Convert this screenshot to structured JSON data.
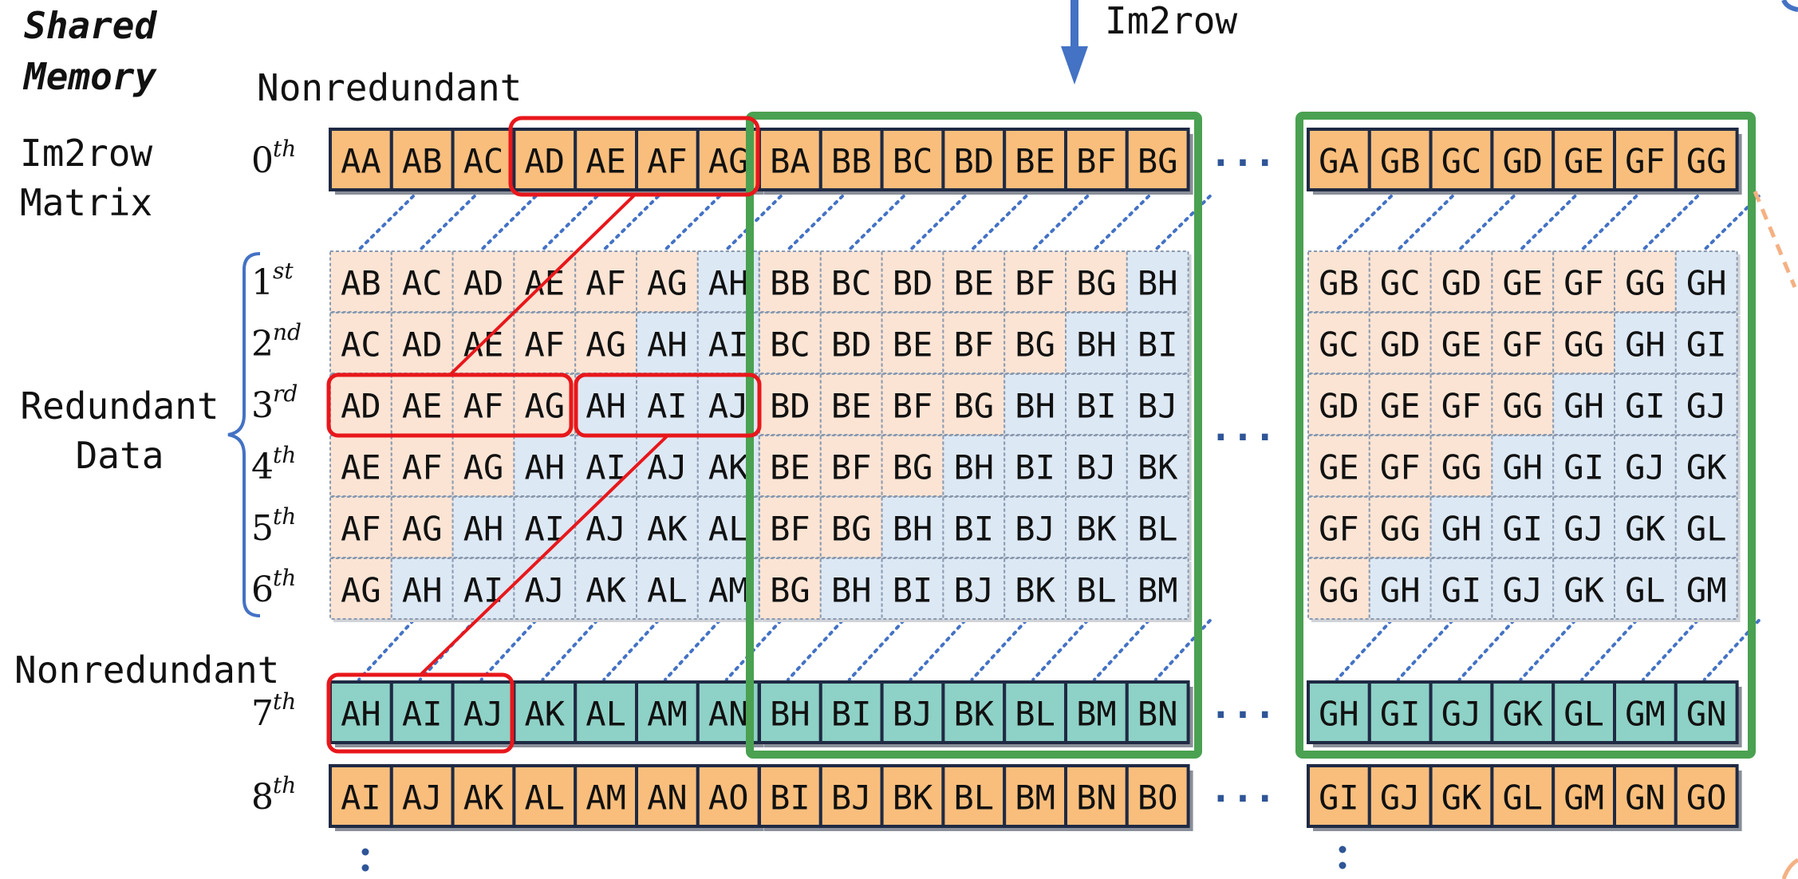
{
  "labels": {
    "shared_memory": [
      "Shared",
      "Memory"
    ],
    "im2row_matrix": [
      "Im2row",
      "Matrix"
    ],
    "redundant_data": [
      "Redundant",
      "Data"
    ],
    "nonredundant_top": "Nonredundant",
    "nonredundant_bottom": "Nonredundant",
    "im2row_arrow": "Im2row",
    "ellipsis": "..."
  },
  "colors": {
    "orange_solid": "#F9BE7C",
    "orange_light": "#FCE4D4",
    "blue_light": "#DCE8F4",
    "teal_solid": "#8ED1C6",
    "red_highlight": "#E8171B",
    "green_block": "#4AA151",
    "arrow_blue": "#4472C4",
    "brace_blue": "#4472C4",
    "dotted_blue": "#4472C4",
    "dashed_orange": "#F4B183"
  },
  "rows": [
    {
      "ord": "0",
      "sup": "th",
      "style": "solid-orange",
      "groupA": [
        "AA",
        "AB",
        "AC",
        "AD",
        "AE",
        "AF",
        "AG"
      ],
      "groupB": [
        "BA",
        "BB",
        "BC",
        "BD",
        "BE",
        "BF",
        "BG"
      ],
      "groupG": [
        "GA",
        "GB",
        "GC",
        "GD",
        "GE",
        "GF",
        "GG"
      ]
    },
    {
      "ord": "1",
      "sup": "st",
      "style": "redundant",
      "groupA": [
        "AB",
        "AC",
        "AD",
        "AE",
        "AF",
        "AG",
        "AH"
      ],
      "groupB": [
        "BB",
        "BC",
        "BD",
        "BE",
        "BF",
        "BG",
        "BH"
      ],
      "groupG": [
        "GB",
        "GC",
        "GD",
        "GE",
        "GF",
        "GG",
        "GH"
      ]
    },
    {
      "ord": "2",
      "sup": "nd",
      "style": "redundant",
      "groupA": [
        "AC",
        "AD",
        "AE",
        "AF",
        "AG",
        "AH",
        "AI"
      ],
      "groupB": [
        "BC",
        "BD",
        "BE",
        "BF",
        "BG",
        "BH",
        "BI"
      ],
      "groupG": [
        "GC",
        "GD",
        "GE",
        "GF",
        "GG",
        "GH",
        "GI"
      ]
    },
    {
      "ord": "3",
      "sup": "rd",
      "style": "redundant",
      "groupA": [
        "AD",
        "AE",
        "AF",
        "AG",
        "AH",
        "AI",
        "AJ"
      ],
      "groupB": [
        "BD",
        "BE",
        "BF",
        "BG",
        "BH",
        "BI",
        "BJ"
      ],
      "groupG": [
        "GD",
        "GE",
        "GF",
        "GG",
        "GH",
        "GI",
        "GJ"
      ]
    },
    {
      "ord": "4",
      "sup": "th",
      "style": "redundant",
      "groupA": [
        "AE",
        "AF",
        "AG",
        "AH",
        "AI",
        "AJ",
        "AK"
      ],
      "groupB": [
        "BE",
        "BF",
        "BG",
        "BH",
        "BI",
        "BJ",
        "BK"
      ],
      "groupG": [
        "GE",
        "GF",
        "GG",
        "GH",
        "GI",
        "GJ",
        "GK"
      ]
    },
    {
      "ord": "5",
      "sup": "th",
      "style": "redundant",
      "groupA": [
        "AF",
        "AG",
        "AH",
        "AI",
        "AJ",
        "AK",
        "AL"
      ],
      "groupB": [
        "BF",
        "BG",
        "BH",
        "BI",
        "BJ",
        "BK",
        "BL"
      ],
      "groupG": [
        "GF",
        "GG",
        "GH",
        "GI",
        "GJ",
        "GK",
        "GL"
      ]
    },
    {
      "ord": "6",
      "sup": "th",
      "style": "redundant",
      "groupA": [
        "AG",
        "AH",
        "AI",
        "AJ",
        "AK",
        "AL",
        "AM"
      ],
      "groupB": [
        "BG",
        "BH",
        "BI",
        "BJ",
        "BK",
        "BL",
        "BM"
      ],
      "groupG": [
        "GG",
        "GH",
        "GI",
        "GJ",
        "GK",
        "GL",
        "GM"
      ]
    },
    {
      "ord": "7",
      "sup": "th",
      "style": "solid-teal",
      "groupA": [
        "AH",
        "AI",
        "AJ",
        "AK",
        "AL",
        "AM",
        "AN"
      ],
      "groupB": [
        "BH",
        "BI",
        "BJ",
        "BK",
        "BL",
        "BM",
        "BN"
      ],
      "groupG": [
        "GH",
        "GI",
        "GJ",
        "GK",
        "GL",
        "GM",
        "GN"
      ]
    },
    {
      "ord": "8",
      "sup": "th",
      "style": "solid-orange",
      "groupA": [
        "AI",
        "AJ",
        "AK",
        "AL",
        "AM",
        "AN",
        "AO"
      ],
      "groupB": [
        "BI",
        "BJ",
        "BK",
        "BL",
        "BM",
        "BN",
        "BO"
      ],
      "groupG": [
        "GI",
        "GJ",
        "GK",
        "GL",
        "GM",
        "GN",
        "GO"
      ]
    }
  ]
}
